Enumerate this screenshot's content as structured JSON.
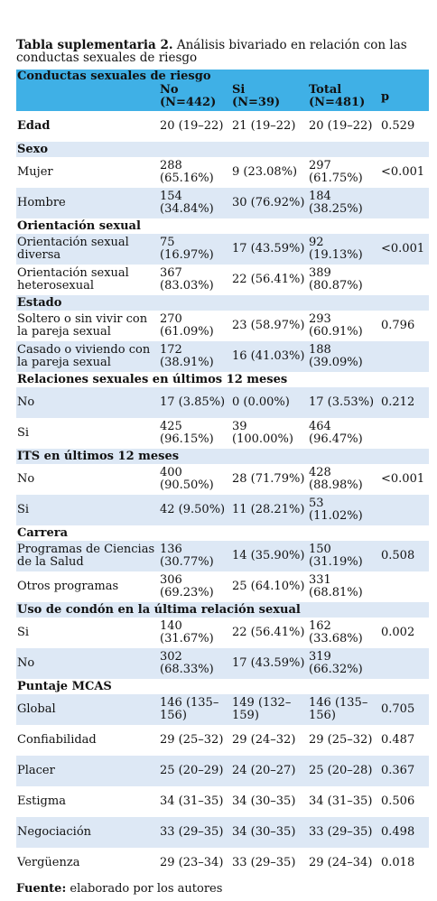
{
  "caption": {
    "label": "Tabla suplementaria 2.",
    "text": "Análisis bivariado en relación con las conductas sexuales de riesgo"
  },
  "header": {
    "group_title": "Conductas sexuales de riesgo",
    "col_no": "No",
    "col_no_n": "(N=442)",
    "col_si": "Si",
    "col_si_n": "(N=39)",
    "col_total": "Total",
    "col_total_n": "(N=481)",
    "col_p": "p"
  },
  "rows": [
    {
      "kind": "data",
      "bold": true,
      "shade": false,
      "label": "Edad",
      "no": "20 (19–22)",
      "si": "21 (19–22)",
      "total": "20 (19–22)",
      "p": "0.529"
    },
    {
      "kind": "section",
      "shade": true,
      "label": "Sexo"
    },
    {
      "kind": "data",
      "shade": false,
      "label": "Mujer",
      "no": "288 (65.16%)",
      "si": "9 (23.08%)",
      "total": "297 (61.75%)",
      "p": "<0.001"
    },
    {
      "kind": "data",
      "shade": true,
      "label": "Hombre",
      "no": "154 (34.84%)",
      "si": "30 (76.92%)",
      "total": "184 (38.25%)",
      "p": ""
    },
    {
      "kind": "section",
      "shade": false,
      "label": "Orientación sexual"
    },
    {
      "kind": "data",
      "shade": true,
      "label": "Orientación sexual diversa",
      "no": "75 (16.97%)",
      "si": "17 (43.59%)",
      "total": "92 (19.13%)",
      "p": "<0.001"
    },
    {
      "kind": "data",
      "shade": false,
      "label": "Orientación sexual heterosexual",
      "no": "367 (83.03%)",
      "si": "22 (56.41%)",
      "total": "389 (80.87%)",
      "p": ""
    },
    {
      "kind": "section",
      "shade": true,
      "label": "Estado"
    },
    {
      "kind": "data",
      "shade": false,
      "label": "Soltero o sin vivir con la pareja sexual",
      "no": "270 (61.09%)",
      "si": "23 (58.97%)",
      "total": "293 (60.91%)",
      "p": "0.796"
    },
    {
      "kind": "data",
      "shade": true,
      "label": "Casado o viviendo con la pareja sexual",
      "no": "172 (38.91%)",
      "si": "16 (41.03%)",
      "total": "188 (39.09%)",
      "p": ""
    },
    {
      "kind": "section",
      "shade": false,
      "label": "Relaciones sexuales en últimos 12 meses"
    },
    {
      "kind": "data",
      "shade": true,
      "label": "No",
      "no": "17 (3.85%)",
      "si": "0 (0.00%)",
      "total": "17 (3.53%)",
      "p": "0.212"
    },
    {
      "kind": "data",
      "shade": false,
      "label": "Si",
      "no": "425 (96.15%)",
      "si": "39 (100.00%)",
      "total": "464 (96.47%)",
      "p": ""
    },
    {
      "kind": "section",
      "shade": true,
      "label": "ITS en últimos 12 meses"
    },
    {
      "kind": "data",
      "shade": false,
      "label": "No",
      "no": "400 (90.50%)",
      "si": "28 (71.79%)",
      "total": "428 (88.98%)",
      "p": "<0.001"
    },
    {
      "kind": "data",
      "shade": true,
      "label": "Si",
      "no": "42 (9.50%)",
      "si": "11 (28.21%)",
      "total": "53 (11.02%)",
      "p": ""
    },
    {
      "kind": "section",
      "shade": false,
      "label": "Carrera"
    },
    {
      "kind": "data",
      "shade": true,
      "label": "Programas de Ciencias de la Salud",
      "no": "136 (30.77%)",
      "si": "14 (35.90%)",
      "total": "150 (31.19%)",
      "p": "0.508"
    },
    {
      "kind": "data",
      "shade": false,
      "label": "Otros programas",
      "no": "306 (69.23%)",
      "si": "25 (64.10%)",
      "total": "331 (68.81%)",
      "p": ""
    },
    {
      "kind": "section",
      "shade": true,
      "label": "Uso de condón en la última relación sexual"
    },
    {
      "kind": "data",
      "shade": false,
      "label": "Si",
      "no": "140 (31.67%)",
      "si": "22 (56.41%)",
      "total": "162 (33.68%)",
      "p": "0.002"
    },
    {
      "kind": "data",
      "shade": true,
      "label": "No",
      "no": "302 (68.33%)",
      "si": "17 (43.59%)",
      "total": "319 (66.32%)",
      "p": ""
    },
    {
      "kind": "section",
      "shade": false,
      "label": "Puntaje MCAS"
    },
    {
      "kind": "data",
      "shade": true,
      "label": "Global",
      "no": "146 (135–156)",
      "si": "149 (132–159)",
      "total": "146 (135–156)",
      "p": "0.705"
    },
    {
      "kind": "data",
      "shade": false,
      "label": "Confiabilidad",
      "no": "29 (25–32)",
      "si": "29 (24–32)",
      "total": "29 (25–32)",
      "p": "0.487"
    },
    {
      "kind": "data",
      "shade": true,
      "label": "Placer",
      "no": "25 (20–29)",
      "si": "24 (20–27)",
      "total": "25 (20–28)",
      "p": "0.367"
    },
    {
      "kind": "data",
      "shade": false,
      "label": "Estigma",
      "no": "34 (31–35)",
      "si": "34 (30–35)",
      "total": "34 (31–35)",
      "p": "0.506"
    },
    {
      "kind": "data",
      "shade": true,
      "label": "Negociación",
      "no": "33 (29–35)",
      "si": "34 (30–35)",
      "total": "33 (29–35)",
      "p": "0.498"
    },
    {
      "kind": "data",
      "shade": false,
      "label": "Vergüenza",
      "no": "29 (23–34)",
      "si": "33 (29–35)",
      "total": "29 (24–34)",
      "p": "0.018"
    }
  ],
  "footer": {
    "label": "Fuente:",
    "text": "elaborado por los autores"
  }
}
